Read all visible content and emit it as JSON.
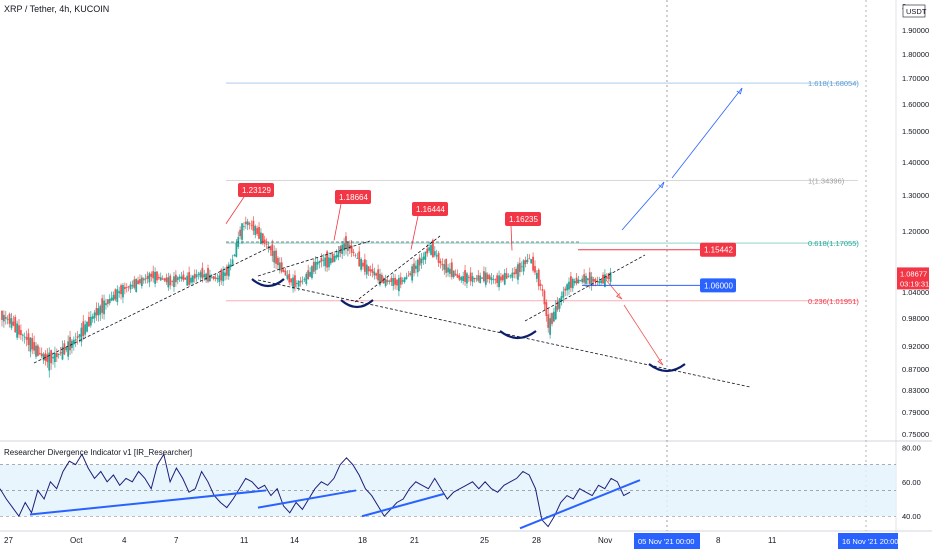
{
  "header": {
    "symbol_line": "XRP / Tether, 4h, KUCOIN",
    "currency": "USDT"
  },
  "indicator": {
    "title": "Researcher Divergence Indicator v1 [IR_Researcher]"
  },
  "price_badge": {
    "value": "1.08677",
    "timer": "03:19:31",
    "color": "#f23645"
  },
  "crosshair": {
    "date_label": "05 Nov '21   00:00",
    "date_label2": "16 Nov '21   20:00"
  },
  "colors": {
    "candle_up": "#26a69a",
    "candle_down": "#ef5350",
    "label_red": "#f23645",
    "label_blue": "#2962ff",
    "trend_blue": "#2962ff",
    "arc": "#0b1f6b",
    "rsi": "#1b1f7a"
  },
  "chart_data": [
    {
      "type": "candlestick",
      "title": "XRP / Tether, 4h, KUCOIN",
      "ylim": [
        0.75,
        2.0
      ],
      "y_ticks": [
        2.0,
        1.9,
        1.8,
        1.7,
        1.6,
        1.5,
        1.4,
        1.3,
        1.2,
        1.1,
        1.04,
        0.98,
        0.92,
        0.87,
        0.83,
        0.79,
        0.75
      ],
      "y_tick_labels": [
        "2.",
        "1.90000",
        "1.80000",
        "1.70000",
        "1.60000",
        "1.50000",
        "1.40000",
        "1.30000",
        "1.20000",
        "1.10000",
        "1.04000",
        "0.98000",
        "0.92000",
        "0.87000",
        "0.83000",
        "0.79000",
        "0.75000"
      ],
      "x_tick_labels": [
        "27",
        "Oct",
        "4",
        "7",
        "11",
        "14",
        "18",
        "21",
        "25",
        "28",
        "Nov",
        "8",
        "11",
        "15"
      ],
      "price_series": [
        [
          0,
          0.985
        ],
        [
          5,
          0.975
        ],
        [
          10,
          0.95
        ],
        [
          15,
          0.93
        ],
        [
          20,
          0.905
        ],
        [
          25,
          0.89
        ],
        [
          30,
          0.9
        ],
        [
          35,
          0.915
        ],
        [
          40,
          0.935
        ],
        [
          45,
          0.96
        ],
        [
          50,
          0.99
        ],
        [
          55,
          1.01
        ],
        [
          60,
          1.03
        ],
        [
          65,
          1.05
        ],
        [
          70,
          1.06
        ],
        [
          75,
          1.075
        ],
        [
          80,
          1.09
        ],
        [
          85,
          1.08
        ],
        [
          90,
          1.07
        ],
        [
          95,
          1.085
        ],
        [
          100,
          1.075
        ],
        [
          105,
          1.095
        ],
        [
          110,
          1.085
        ],
        [
          115,
          1.08
        ],
        [
          120,
          1.1
        ],
        [
          123,
          1.13
        ],
        [
          127,
          1.2
        ],
        [
          130,
          1.225
        ],
        [
          133,
          1.215
        ],
        [
          137,
          1.19
        ],
        [
          140,
          1.17
        ],
        [
          143,
          1.155
        ],
        [
          147,
          1.12
        ],
        [
          150,
          1.1
        ],
        [
          153,
          1.075
        ],
        [
          157,
          1.065
        ],
        [
          160,
          1.075
        ],
        [
          163,
          1.09
        ],
        [
          167,
          1.12
        ],
        [
          170,
          1.13
        ],
        [
          173,
          1.125
        ],
        [
          177,
          1.135
        ],
        [
          180,
          1.155
        ],
        [
          183,
          1.17
        ],
        [
          187,
          1.145
        ],
        [
          190,
          1.125
        ],
        [
          193,
          1.11
        ],
        [
          197,
          1.1
        ],
        [
          200,
          1.085
        ],
        [
          203,
          1.07
        ],
        [
          207,
          1.075
        ],
        [
          210,
          1.065
        ],
        [
          213,
          1.075
        ],
        [
          217,
          1.095
        ],
        [
          220,
          1.115
        ],
        [
          223,
          1.13
        ],
        [
          227,
          1.16
        ],
        [
          230,
          1.145
        ],
        [
          233,
          1.12
        ],
        [
          237,
          1.105
        ],
        [
          240,
          1.095
        ],
        [
          243,
          1.08
        ],
        [
          247,
          1.085
        ],
        [
          250,
          1.08
        ],
        [
          253,
          1.08
        ],
        [
          257,
          1.085
        ],
        [
          260,
          1.08
        ],
        [
          263,
          1.075
        ],
        [
          267,
          1.085
        ],
        [
          270,
          1.09
        ],
        [
          273,
          1.1
        ],
        [
          277,
          1.12
        ],
        [
          280,
          1.135
        ],
        [
          283,
          1.1
        ],
        [
          287,
          1.04
        ],
        [
          290,
          0.96
        ],
        [
          293,
          0.99
        ],
        [
          297,
          1.03
        ],
        [
          300,
          1.06
        ],
        [
          303,
          1.07
        ],
        [
          307,
          1.075
        ],
        [
          310,
          1.08
        ],
        [
          313,
          1.075
        ],
        [
          317,
          1.07
        ],
        [
          320,
          1.08
        ],
        [
          323,
          1.09
        ],
        [
          327,
          1.12
        ],
        [
          330,
          1.13
        ],
        [
          333,
          1.115
        ],
        [
          337,
          1.1
        ],
        [
          340,
          1.09
        ]
      ],
      "last_price": 1.08677,
      "highs": [
        {
          "label": "1.23129",
          "value": 1.23129
        },
        {
          "label": "1.18664",
          "value": 1.18664
        },
        {
          "label": "1.16444",
          "value": 1.16444
        },
        {
          "label": "1.16235",
          "value": 1.16235
        }
      ],
      "levels": [
        {
          "label": "1.15442",
          "value": 1.15442,
          "color": "#f23645"
        },
        {
          "label": "1.06000",
          "value": 1.06,
          "color": "#2962ff"
        }
      ],
      "fibonacci": [
        {
          "label": "1.618(1.68054)",
          "value": 1.68054,
          "color": "#5b9bd5"
        },
        {
          "label": "1(1.34396)",
          "value": 1.34396,
          "color": "#9e9e9e"
        },
        {
          "label": "0.618(1.17055)",
          "value": 1.17055,
          "color": "#26a69a"
        },
        {
          "label": "0.236(1.01951)",
          "value": 1.01951,
          "color": "#f23645"
        }
      ]
    },
    {
      "type": "line",
      "title": "Researcher Divergence Indicator v1 [IR_Researcher]",
      "ylim": [
        32,
        82
      ],
      "y_ticks": [
        80,
        60,
        40
      ],
      "y_tick_labels": [
        "80.00",
        "60.00",
        "40.00"
      ],
      "band": [
        40,
        70
      ],
      "series": [
        {
          "values": [
            [
              0,
              56
            ],
            [
              6,
              50
            ],
            [
              12,
              45
            ],
            [
              18,
              40
            ],
            [
              24,
              48
            ],
            [
              30,
              42
            ],
            [
              36,
              55
            ],
            [
              42,
              50
            ],
            [
              48,
              60
            ],
            [
              54,
              56
            ],
            [
              60,
              66
            ],
            [
              66,
              72
            ],
            [
              72,
              70
            ],
            [
              78,
              76
            ],
            [
              84,
              68
            ],
            [
              90,
              62
            ],
            [
              96,
              66
            ],
            [
              102,
              60
            ],
            [
              108,
              64
            ],
            [
              114,
              58
            ],
            [
              120,
              62
            ],
            [
              126,
              60
            ],
            [
              132,
              66
            ],
            [
              138,
              62
            ],
            [
              144,
              56
            ],
            [
              150,
              70
            ],
            [
              156,
              76
            ],
            [
              162,
              60
            ],
            [
              168,
              68
            ],
            [
              174,
              62
            ],
            [
              180,
              54
            ],
            [
              186,
              56
            ],
            [
              192,
              66
            ],
            [
              198,
              60
            ],
            [
              204,
              52
            ],
            [
              210,
              48
            ],
            [
              216,
              45
            ],
            [
              222,
              50
            ],
            [
              228,
              56
            ],
            [
              234,
              62
            ],
            [
              240,
              60
            ],
            [
              246,
              56
            ],
            [
              252,
              58
            ],
            [
              258,
              52
            ],
            [
              264,
              56
            ],
            [
              270,
              46
            ],
            [
              276,
              42
            ],
            [
              282,
              48
            ],
            [
              288,
              44
            ],
            [
              294,
              50
            ],
            [
              300,
              56
            ],
            [
              306,
              60
            ],
            [
              312,
              58
            ],
            [
              318,
              62
            ],
            [
              324,
              70
            ],
            [
              330,
              74
            ],
            [
              336,
              70
            ],
            [
              342,
              64
            ],
            [
              348,
              56
            ],
            [
              354,
              52
            ],
            [
              360,
              46
            ],
            [
              366,
              40
            ],
            [
              372,
              44
            ],
            [
              378,
              48
            ],
            [
              384,
              50
            ],
            [
              390,
              56
            ],
            [
              396,
              60
            ],
            [
              402,
              58
            ],
            [
              408,
              56
            ],
            [
              414,
              62
            ],
            [
              420,
              56
            ],
            [
              426,
              50
            ],
            [
              432,
              54
            ],
            [
              438,
              56
            ],
            [
              444,
              58
            ],
            [
              450,
              60
            ],
            [
              456,
              56
            ],
            [
              462,
              60
            ],
            [
              468,
              56
            ],
            [
              474,
              54
            ],
            [
              480,
              58
            ],
            [
              486,
              60
            ],
            [
              492,
              62
            ],
            [
              498,
              66
            ],
            [
              504,
              64
            ],
            [
              510,
              56
            ],
            [
              516,
              38
            ],
            [
              522,
              34
            ],
            [
              528,
              40
            ],
            [
              534,
              48
            ],
            [
              540,
              52
            ],
            [
              546,
              50
            ],
            [
              552,
              56
            ],
            [
              558,
              54
            ],
            [
              564,
              52
            ],
            [
              570,
              58
            ],
            [
              576,
              56
            ],
            [
              582,
              62
            ],
            [
              588,
              60
            ],
            [
              594,
              52
            ],
            [
              600,
              54
            ]
          ]
        }
      ]
    }
  ]
}
